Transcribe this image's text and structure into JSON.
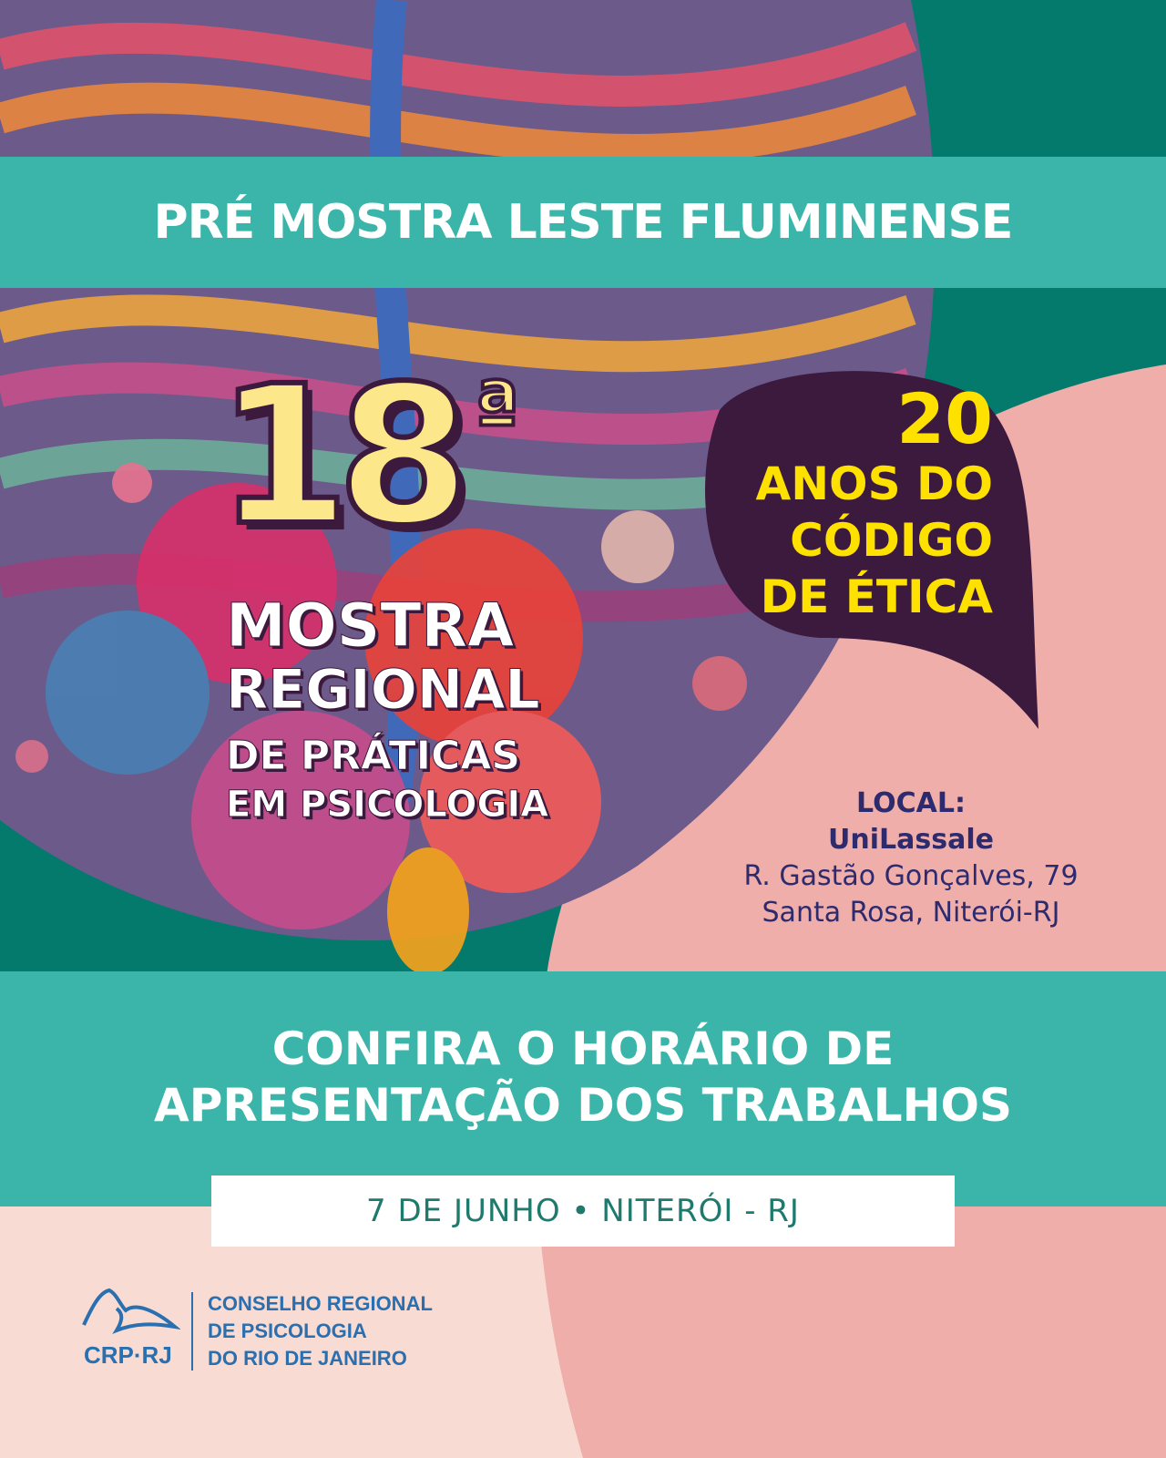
{
  "colors": {
    "teal": "#3bb5a9",
    "dark_teal": "#047a6c",
    "pink": "#efaeaa",
    "light_pink": "#f8dcd3",
    "purple": "#3c1a3e",
    "yellow": "#ffe100",
    "navy": "#2d2a6e",
    "logo_blue": "#2a6fb0"
  },
  "header": {
    "title": "PRÉ MOSTRA LESTE FLUMINENSE"
  },
  "event": {
    "edition": "18",
    "ordinal": "ª",
    "line1": "MOSTRA",
    "line2": "REGIONAL",
    "line3": "DE PRÁTICAS",
    "line4": "EM PSICOLOGIA"
  },
  "bubble": {
    "number": "20",
    "line1": "ANOS DO",
    "line2": "CÓDIGO",
    "line3": "DE ÉTICA"
  },
  "location": {
    "label": "LOCAL:",
    "venue": "UniLassale",
    "street": "R. Gastão Gonçalves, 79",
    "city": "Santa Rosa, Niterói-RJ"
  },
  "cta": {
    "line1": "CONFIRA O HORÁRIO DE",
    "line2": "APRESENTAÇÃO DOS TRABALHOS"
  },
  "date": "7 DE JUNHO • NITERÓI - RJ",
  "logo": {
    "acronym": "CRP·RJ",
    "line1": "CONSELHO REGIONAL",
    "line2": "DE PSICOLOGIA",
    "line3": "DO RIO DE JANEIRO"
  }
}
